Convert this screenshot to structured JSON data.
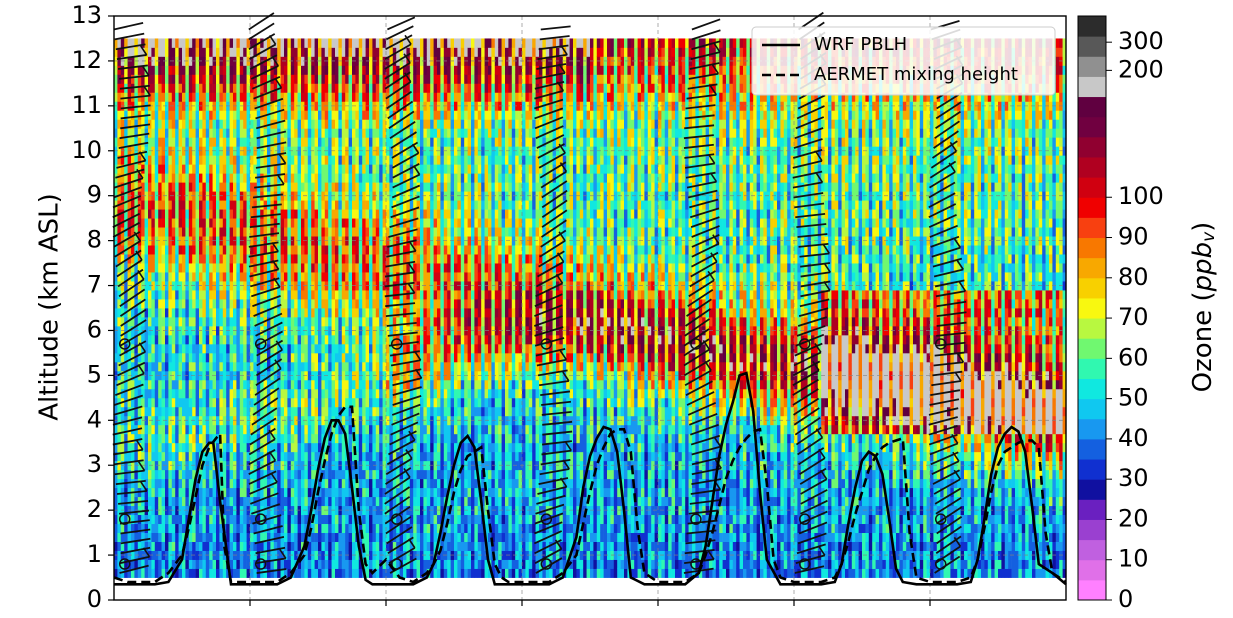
{
  "chart_data": {
    "type": "heatmap",
    "title": "",
    "ylabel": "Altitude (km ASL)",
    "xlabel": "",
    "ylim": [
      0,
      13
    ],
    "yticks": [
      0,
      1,
      2,
      3,
      4,
      5,
      6,
      7,
      8,
      9,
      10,
      11,
      12,
      13
    ],
    "grid": true,
    "legend_position": "top-right",
    "colorbar": {
      "label_main": "Ozone (",
      "label_italic": "ppb",
      "label_sub": "v",
      "label_close": ")",
      "tick_labels": [
        "0",
        "10",
        "20",
        "30",
        "40",
        "50",
        "60",
        "70",
        "80",
        "90",
        "100",
        "200",
        "300"
      ],
      "colors": [
        "#ff80ff",
        "#e070e8",
        "#c060e0",
        "#9a40d0",
        "#6a20c0",
        "#1010a0",
        "#1030d0",
        "#1460e0",
        "#1898f0",
        "#10c8f0",
        "#10e8e0",
        "#30f8b0",
        "#70f870",
        "#b8f840",
        "#f8f810",
        "#f8d000",
        "#f8a800",
        "#f87800",
        "#f84010",
        "#f00000",
        "#d00010",
        "#b00020",
        "#900030",
        "#700040",
        "#600040",
        "#c8c8c8",
        "#909090",
        "#585858",
        "#2c2c2c"
      ]
    },
    "profile_count": 7,
    "profile_x_range": [
      0,
      7
    ],
    "series": [
      {
        "name": "WRF PBLH",
        "style": "solid",
        "x": [
          0,
          0.1,
          0.2,
          0.3,
          0.4,
          0.5,
          0.55,
          0.6,
          0.65,
          0.7,
          0.73,
          0.78,
          0.86,
          0.93,
          1.0,
          1.1,
          1.2,
          1.3,
          1.4,
          1.45,
          1.5,
          1.55,
          1.6,
          1.65,
          1.7,
          1.75,
          1.8,
          1.85,
          1.9,
          2.0,
          2.1,
          2.2,
          2.3,
          2.35,
          2.4,
          2.45,
          2.5,
          2.55,
          2.6,
          2.65,
          2.7,
          2.75,
          2.8,
          2.9,
          3.0,
          3.1,
          3.2,
          3.3,
          3.4,
          3.45,
          3.5,
          3.55,
          3.6,
          3.65,
          3.7,
          3.75,
          3.8,
          3.9,
          4.0,
          4.1,
          4.2,
          4.3,
          4.35,
          4.4,
          4.45,
          4.5,
          4.55,
          4.6,
          4.65,
          4.7,
          4.75,
          4.8,
          4.9,
          5.0,
          5.1,
          5.2,
          5.3,
          5.35,
          5.4,
          5.45,
          5.5,
          5.55,
          5.6,
          5.65,
          5.7,
          5.75,
          5.8,
          5.9,
          6.0,
          6.1,
          6.2,
          6.3,
          6.35,
          6.4,
          6.45,
          6.5,
          6.55,
          6.6,
          6.65,
          6.7,
          6.75,
          6.8,
          6.9,
          7.0
        ],
        "y": [
          0.35,
          0.35,
          0.35,
          0.35,
          0.4,
          0.9,
          1.8,
          2.7,
          3.3,
          3.5,
          3.5,
          2.2,
          0.35,
          0.35,
          0.35,
          0.35,
          0.35,
          0.5,
          1.2,
          2.0,
          2.9,
          3.6,
          4.0,
          4.0,
          3.7,
          2.5,
          1.2,
          0.45,
          0.35,
          0.35,
          0.35,
          0.35,
          0.5,
          0.8,
          1.5,
          2.3,
          3.0,
          3.5,
          3.65,
          3.4,
          2.2,
          0.9,
          0.35,
          0.35,
          0.35,
          0.35,
          0.35,
          0.5,
          1.4,
          2.5,
          3.2,
          3.6,
          3.85,
          3.8,
          3.3,
          2.0,
          0.5,
          0.35,
          0.35,
          0.35,
          0.35,
          0.6,
          1.2,
          2.2,
          3.2,
          3.9,
          4.4,
          5.0,
          5.05,
          4.2,
          2.4,
          0.9,
          0.35,
          0.35,
          0.35,
          0.35,
          0.4,
          0.8,
          1.7,
          2.5,
          3.1,
          3.3,
          3.2,
          2.8,
          1.8,
          0.7,
          0.4,
          0.35,
          0.35,
          0.35,
          0.35,
          0.4,
          0.9,
          1.8,
          2.8,
          3.4,
          3.7,
          3.85,
          3.75,
          3.3,
          2.1,
          0.8,
          0.6,
          0.35
        ]
      },
      {
        "name": "AERMET mixing height",
        "style": "dashed",
        "x": [
          0,
          0.1,
          0.2,
          0.3,
          0.4,
          0.5,
          0.55,
          0.6,
          0.65,
          0.7,
          0.75,
          0.78,
          0.81,
          0.86,
          0.93,
          1.0,
          1.1,
          1.2,
          1.3,
          1.4,
          1.45,
          1.5,
          1.55,
          1.6,
          1.65,
          1.7,
          1.75,
          1.8,
          1.85,
          1.9,
          2.0,
          2.1,
          2.2,
          2.3,
          2.35,
          2.4,
          2.45,
          2.5,
          2.55,
          2.6,
          2.65,
          2.7,
          2.75,
          2.8,
          2.85,
          2.9,
          3.0,
          3.1,
          3.2,
          3.3,
          3.4,
          3.45,
          3.5,
          3.55,
          3.6,
          3.65,
          3.7,
          3.75,
          3.8,
          3.85,
          3.9,
          4.0,
          4.1,
          4.2,
          4.3,
          4.35,
          4.4,
          4.45,
          4.5,
          4.55,
          4.6,
          4.65,
          4.7,
          4.75,
          4.8,
          4.85,
          4.9,
          5.0,
          5.1,
          5.2,
          5.3,
          5.35,
          5.4,
          5.45,
          5.5,
          5.55,
          5.6,
          5.65,
          5.7,
          5.75,
          5.8,
          5.85,
          5.9,
          6.0,
          6.1,
          6.2,
          6.3,
          6.35,
          6.4,
          6.45,
          6.5,
          6.55,
          6.6,
          6.65,
          6.7,
          6.75,
          6.8,
          6.85,
          6.9,
          7.0
        ],
        "y": [
          0.5,
          0.4,
          0.4,
          0.4,
          0.6,
          1.0,
          1.6,
          2.3,
          3.0,
          3.4,
          3.6,
          3.7,
          1.2,
          0.4,
          0.4,
          0.4,
          0.4,
          0.4,
          0.6,
          1.0,
          1.6,
          2.4,
          3.1,
          3.7,
          4.1,
          4.3,
          4.3,
          2.0,
          0.8,
          0.6,
          0.9,
          0.5,
          0.4,
          0.6,
          0.8,
          1.1,
          1.7,
          2.4,
          2.9,
          3.2,
          3.3,
          3.4,
          2.0,
          0.8,
          0.5,
          0.4,
          0.4,
          0.4,
          0.4,
          0.6,
          1.0,
          1.7,
          2.4,
          3.0,
          3.4,
          3.7,
          3.8,
          3.8,
          3.3,
          1.6,
          0.6,
          0.4,
          0.4,
          0.4,
          0.6,
          1.0,
          1.5,
          2.1,
          2.7,
          3.1,
          3.4,
          3.6,
          3.75,
          3.8,
          2.6,
          0.9,
          0.5,
          0.4,
          0.4,
          0.4,
          0.5,
          0.8,
          1.3,
          1.9,
          2.4,
          2.9,
          3.2,
          3.4,
          3.5,
          3.55,
          3.6,
          1.5,
          0.5,
          0.4,
          0.4,
          0.4,
          0.5,
          0.9,
          1.6,
          2.4,
          3.0,
          3.3,
          3.4,
          3.5,
          3.55,
          3.55,
          3.4,
          1.5,
          0.6,
          0.4
        ]
      }
    ]
  }
}
